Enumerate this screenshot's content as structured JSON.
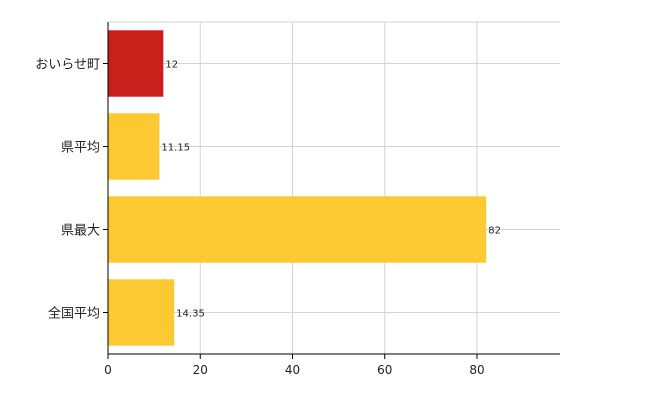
{
  "chart_data": {
    "type": "bar",
    "orientation": "horizontal",
    "categories": [
      "おいらせ町",
      "県平均",
      "県最大",
      "全国平均"
    ],
    "values": [
      12,
      11.15,
      82,
      14.35
    ],
    "data_labels": [
      "12",
      "11.15",
      "82",
      "14.35"
    ],
    "bar_colors": [
      "#c8201a",
      "#fcc932",
      "#fcc932",
      "#fcc932"
    ],
    "title": "",
    "xlabel": "",
    "ylabel": "",
    "xlim": [
      0,
      98
    ],
    "x_ticks": [
      0,
      20,
      40,
      60,
      80
    ],
    "x_tick_labels": [
      "0",
      "20",
      "40",
      "60",
      "80"
    ],
    "grid": true,
    "legend": "none"
  }
}
